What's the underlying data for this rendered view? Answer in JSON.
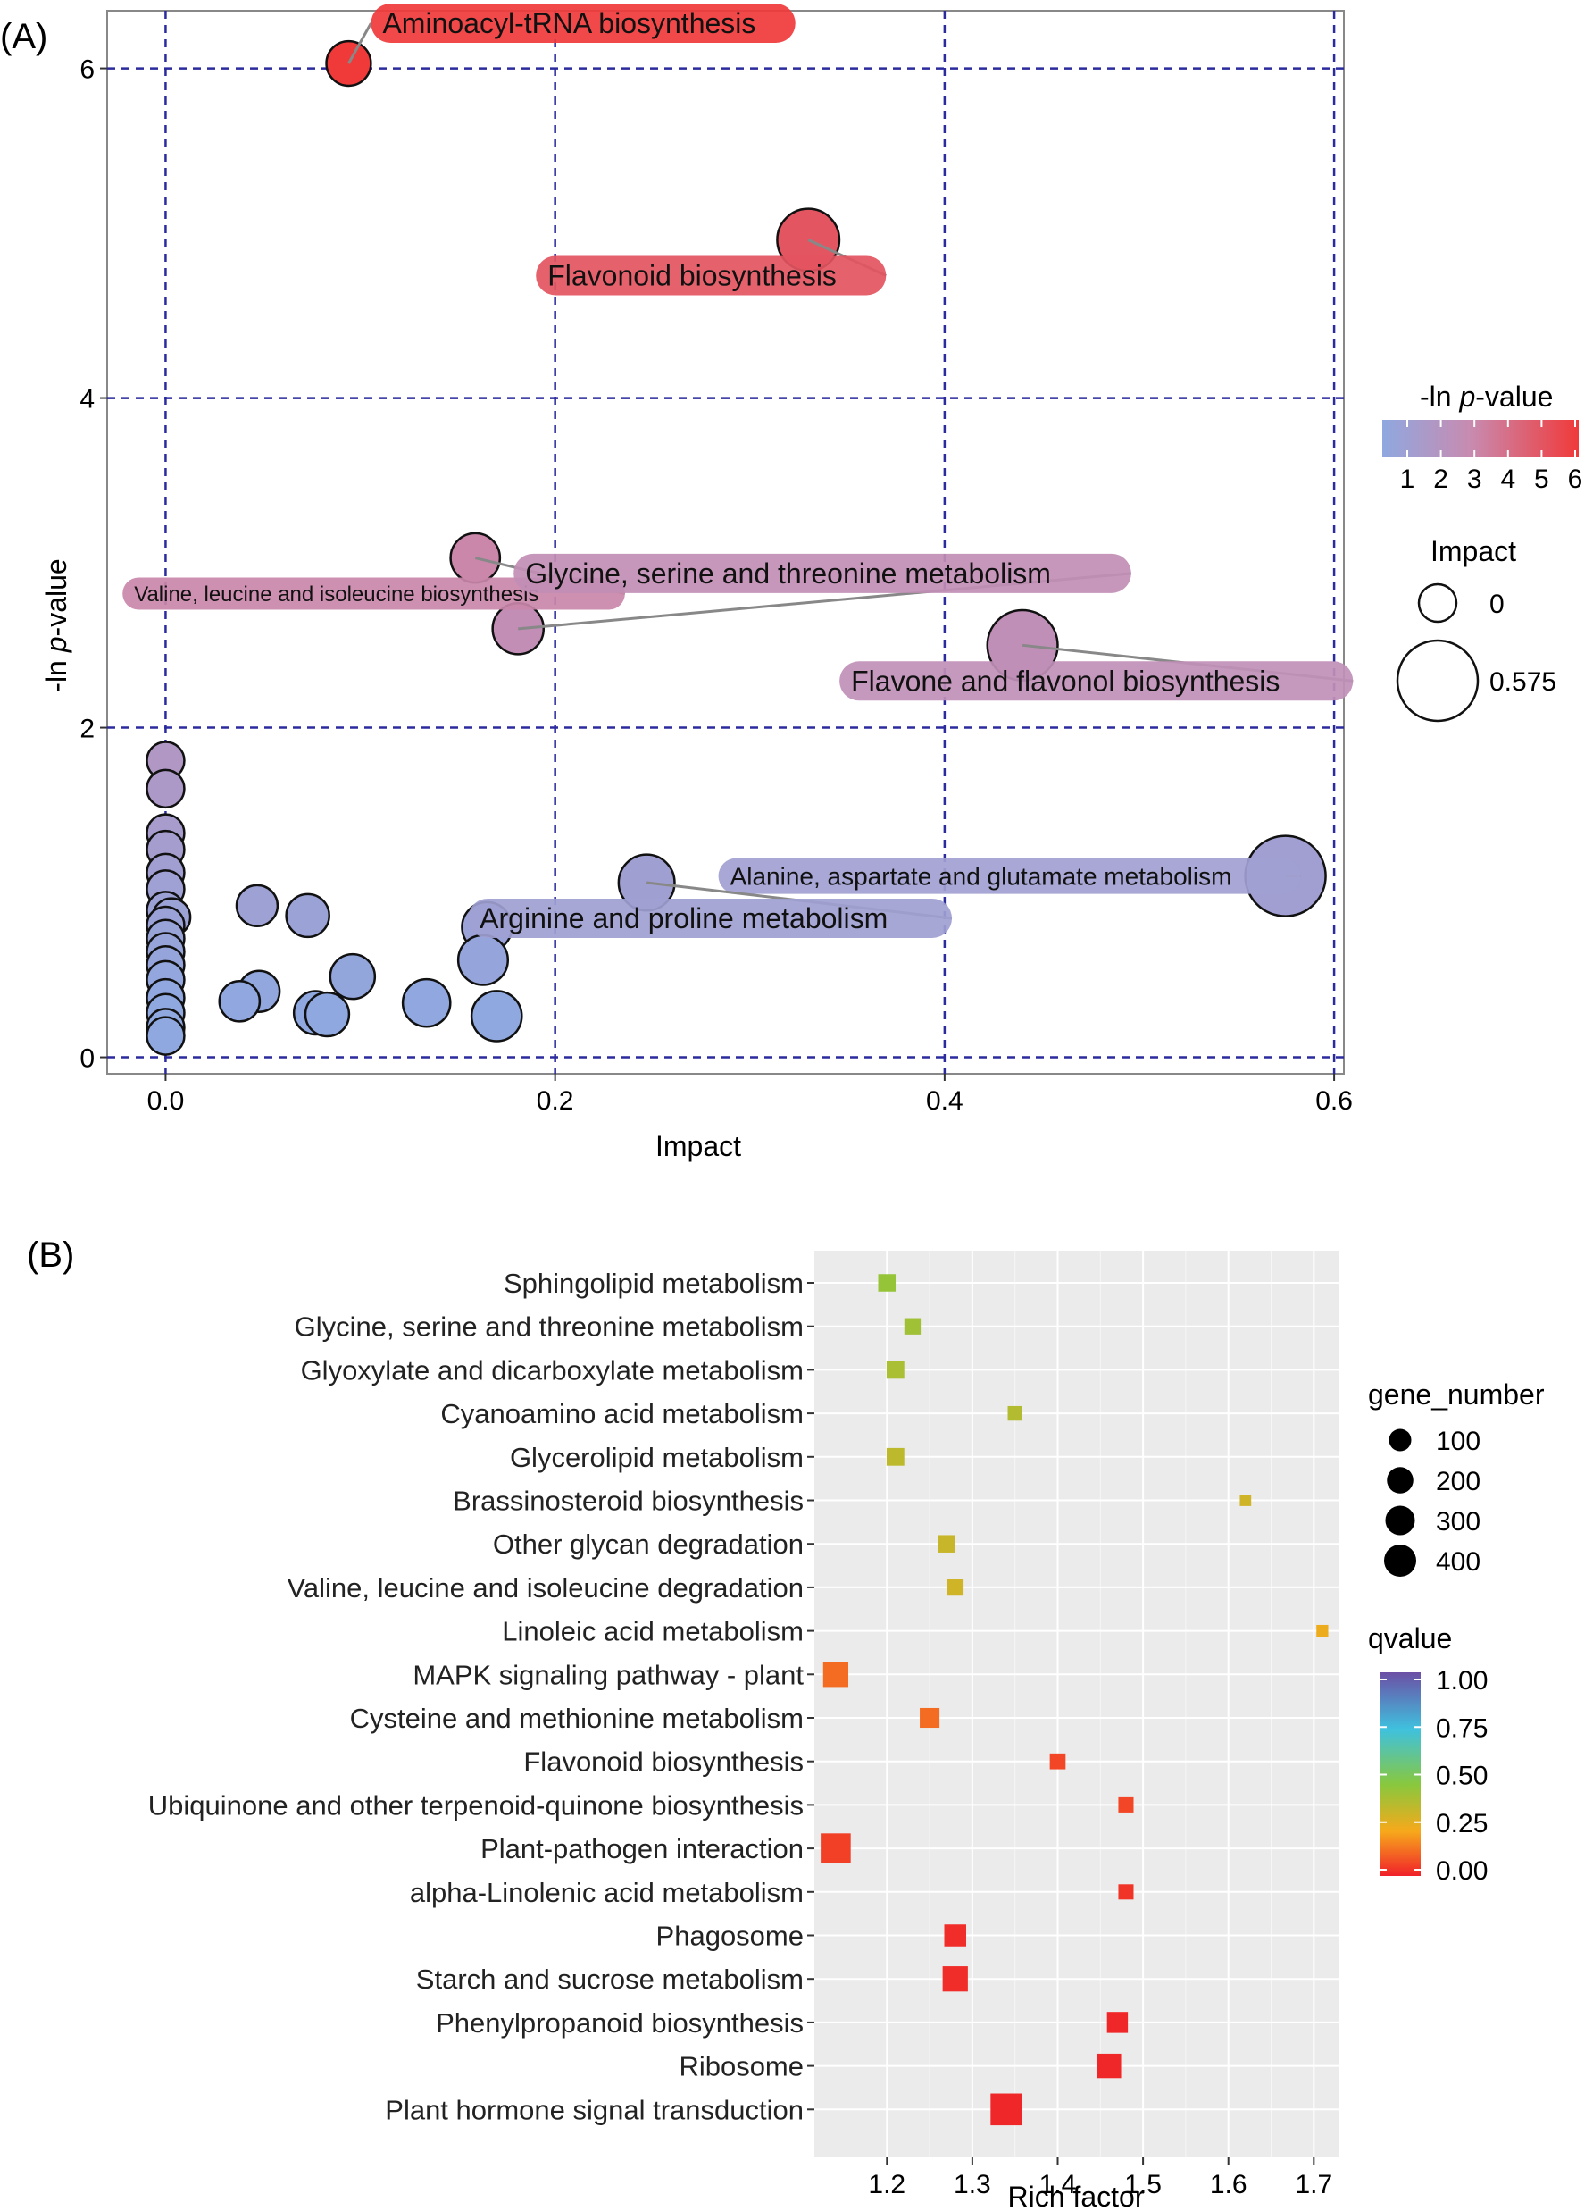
{
  "chart_data": [
    {
      "panel": "(A)",
      "type": "scatter",
      "xlabel": "Impact",
      "ylabel_prefix": "-ln ",
      "ylabel_italic": "p",
      "ylabel_suffix": "-value",
      "xlim": [
        -0.03,
        0.605
      ],
      "ylim": [
        -0.1,
        6.35
      ],
      "xticks": [
        0.0,
        0.2,
        0.4,
        0.6
      ],
      "xtick_labels": [
        "0.0",
        "0.2",
        "0.4",
        "0.6"
      ],
      "yticks": [
        0,
        2,
        4,
        6
      ],
      "ytick_labels": [
        "0",
        "2",
        "4",
        "6"
      ],
      "grid": "dashed",
      "legend_color": {
        "title_prefix": "-ln ",
        "title_italic": "p",
        "title_suffix": "-value",
        "ticks": [
          1,
          2,
          3,
          4,
          5,
          6
        ],
        "tick_labels": [
          "1",
          "2",
          "3",
          "4",
          "5",
          "6"
        ],
        "colors": [
          "#8fa8e0",
          "#f03a3a"
        ]
      },
      "legend_size": {
        "title": "Impact",
        "entries": [
          {
            "label": "0",
            "value": 0
          },
          {
            "label": "0.575",
            "value": 0.575
          }
        ]
      },
      "points": [
        {
          "name": "Aminoacyl-tRNA biosynthesis",
          "x": 0.094,
          "y": 6.03,
          "labeled": true
        },
        {
          "name": "Flavonoid biosynthesis",
          "x": 0.33,
          "y": 4.96,
          "labeled": true
        },
        {
          "name": "Valine, leucine and isoleucine biosynthesis",
          "x": 0.159,
          "y": 3.03,
          "labeled": true
        },
        {
          "name": "Glycine, serine and threonine metabolism",
          "x": 0.181,
          "y": 2.6,
          "labeled": true
        },
        {
          "name": "Flavone and flavonol biosynthesis",
          "x": 0.44,
          "y": 2.5,
          "labeled": true
        },
        {
          "name": "Alanine, aspartate and glutamate metabolism",
          "x": 0.575,
          "y": 1.1,
          "labeled": true
        },
        {
          "name": "Arginine and proline metabolism",
          "x": 0.247,
          "y": 1.06,
          "labeled": true
        },
        {
          "name": "",
          "x": 0.0,
          "y": 1.8
        },
        {
          "name": "",
          "x": 0.0,
          "y": 1.63
        },
        {
          "name": "",
          "x": 0.0,
          "y": 1.36
        },
        {
          "name": "",
          "x": 0.0,
          "y": 1.26
        },
        {
          "name": "",
          "x": 0.0,
          "y": 1.12
        },
        {
          "name": "",
          "x": 0.0,
          "y": 1.02
        },
        {
          "name": "",
          "x": 0.0,
          "y": 0.89
        },
        {
          "name": "",
          "x": 0.003,
          "y": 0.85
        },
        {
          "name": "",
          "x": 0.0,
          "y": 0.8
        },
        {
          "name": "",
          "x": 0.0,
          "y": 0.72
        },
        {
          "name": "",
          "x": 0.0,
          "y": 0.64
        },
        {
          "name": "",
          "x": 0.0,
          "y": 0.56
        },
        {
          "name": "",
          "x": 0.0,
          "y": 0.47
        },
        {
          "name": "",
          "x": 0.0,
          "y": 0.36
        },
        {
          "name": "",
          "x": 0.0,
          "y": 0.27
        },
        {
          "name": "",
          "x": 0.0,
          "y": 0.18
        },
        {
          "name": "",
          "x": 0.0,
          "y": 0.13
        },
        {
          "name": "",
          "x": 0.047,
          "y": 0.92
        },
        {
          "name": "",
          "x": 0.073,
          "y": 0.86
        },
        {
          "name": "",
          "x": 0.048,
          "y": 0.4
        },
        {
          "name": "",
          "x": 0.038,
          "y": 0.34
        },
        {
          "name": "",
          "x": 0.096,
          "y": 0.49
        },
        {
          "name": "",
          "x": 0.077,
          "y": 0.27
        },
        {
          "name": "",
          "x": 0.083,
          "y": 0.26
        },
        {
          "name": "",
          "x": 0.134,
          "y": 0.33
        },
        {
          "name": "",
          "x": 0.165,
          "y": 0.79
        },
        {
          "name": "",
          "x": 0.163,
          "y": 0.59
        },
        {
          "name": "",
          "x": 0.17,
          "y": 0.25
        }
      ],
      "label_texts": [
        "Aminoacyl-tRNA biosynthesis",
        "Flavonoid biosynthesis",
        "Valine, leucine and isoleucine biosynthesis",
        "Glycine, serine and threonine metabolism",
        "Flavone and flavonol biosynthesis",
        "Alanine, aspartate and glutamate metabolism",
        "Arginine and proline metabolism"
      ]
    },
    {
      "panel": "(B)",
      "type": "scatter",
      "xlabel": "Rich factor",
      "xlim": [
        1.115,
        1.73
      ],
      "xticks": [
        1.2,
        1.3,
        1.4,
        1.5,
        1.6,
        1.7
      ],
      "xtick_labels": [
        "1.2",
        "1.3",
        "1.4",
        "1.5",
        "1.6",
        "1.7"
      ],
      "categories": [
        "Sphingolipid metabolism",
        "Glycine, serine and threonine metabolism",
        "Glyoxylate and dicarboxylate metabolism",
        "Cyanoamino acid metabolism",
        "Glycerolipid metabolism",
        "Brassinosteroid biosynthesis",
        "Other glycan degradation",
        "Valine, leucine and isoleucine degradation",
        "Linoleic acid metabolism",
        "MAPK signaling pathway - plant",
        "Cysteine and methionine metabolism",
        "Flavonoid biosynthesis",
        "Ubiquinone and other terpenoid-quinone biosynthesis",
        "Plant-pathogen interaction",
        "alpha-Linolenic acid metabolism",
        "Phagosome",
        "Starch and sucrose metabolism",
        "Phenylpropanoid biosynthesis",
        "Ribosome",
        "Plant hormone signal transduction"
      ],
      "rich_factor": [
        1.2,
        1.23,
        1.21,
        1.35,
        1.21,
        1.62,
        1.27,
        1.28,
        1.71,
        1.14,
        1.25,
        1.4,
        1.48,
        1.14,
        1.48,
        1.28,
        1.28,
        1.47,
        1.46,
        1.34
      ],
      "gene_number": [
        48,
        40,
        50,
        28,
        50,
        12,
        48,
        42,
        14,
        130,
        68,
        36,
        32,
        200,
        32,
        90,
        130,
        80,
        120,
        230
      ],
      "qvalue": [
        0.42,
        0.4,
        0.38,
        0.36,
        0.34,
        0.3,
        0.32,
        0.3,
        0.24,
        0.12,
        0.12,
        0.06,
        0.06,
        0.05,
        0.03,
        0.02,
        0.02,
        0.01,
        0.01,
        0.01
      ],
      "legend_size": {
        "title": "gene_number",
        "entries": [
          {
            "label": "100",
            "value": 100
          },
          {
            "label": "200",
            "value": 200
          },
          {
            "label": "300",
            "value": 300
          },
          {
            "label": "400",
            "value": 400
          }
        ]
      },
      "legend_color": {
        "title": "qvalue",
        "tick_labels": [
          "1.00",
          "0.75",
          "0.50",
          "0.25",
          "0.00"
        ],
        "ticks": [
          1.0,
          0.75,
          0.5,
          0.25,
          0.0
        ]
      }
    }
  ]
}
